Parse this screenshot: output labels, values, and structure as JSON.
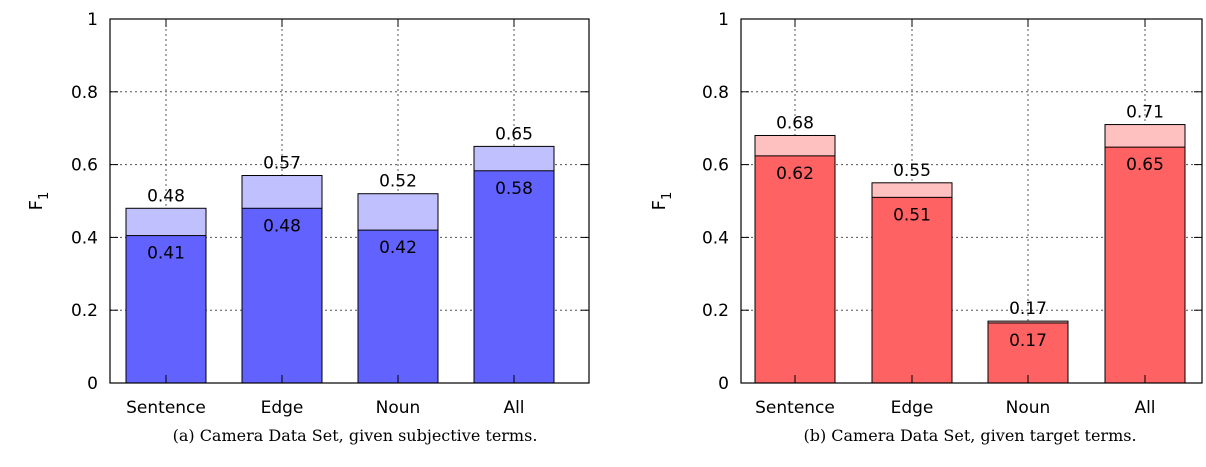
{
  "chart_data": [
    {
      "type": "bar",
      "stacked_overlay": true,
      "caption": "(a) Camera Data Set, given subjective terms.",
      "ylabel": "F",
      "ylabel_sub": "1",
      "ylim": [
        0,
        1
      ],
      "yticks": [
        "0",
        "0.2",
        "0.4",
        "0.6",
        "0.8",
        "1"
      ],
      "grid": true,
      "categories": [
        "Sentence",
        "Edge",
        "Noun",
        "All"
      ],
      "series": [
        {
          "values": [
            0.48,
            0.57,
            0.52,
            0.65
          ],
          "labels": [
            "0.48",
            "0.57",
            "0.52",
            "0.65"
          ],
          "color": "#c0c0ff"
        },
        {
          "values": [
            0.405,
            0.48,
            0.42,
            0.583
          ],
          "labels": [
            "0.41",
            "0.48",
            "0.42",
            "0.58"
          ],
          "color": "#6262fe"
        }
      ]
    },
    {
      "type": "bar",
      "stacked_overlay": true,
      "caption": "(b) Camera Data Set, given target terms.",
      "ylabel": "F",
      "ylabel_sub": "1",
      "ylim": [
        0,
        1
      ],
      "yticks": [
        "0",
        "0.2",
        "0.4",
        "0.6",
        "0.8",
        "1"
      ],
      "grid": true,
      "categories": [
        "Sentence",
        "Edge",
        "Noun",
        "All"
      ],
      "series": [
        {
          "values": [
            0.68,
            0.55,
            0.17,
            0.71
          ],
          "labels": [
            "0.68",
            "0.55",
            "0.17",
            "0.71"
          ],
          "color": "#ffc0c0"
        },
        {
          "values": [
            0.624,
            0.51,
            0.165,
            0.648
          ],
          "labels": [
            "0.62",
            "0.51",
            "0.17",
            "0.65"
          ],
          "color": "#fe6262"
        }
      ]
    }
  ]
}
